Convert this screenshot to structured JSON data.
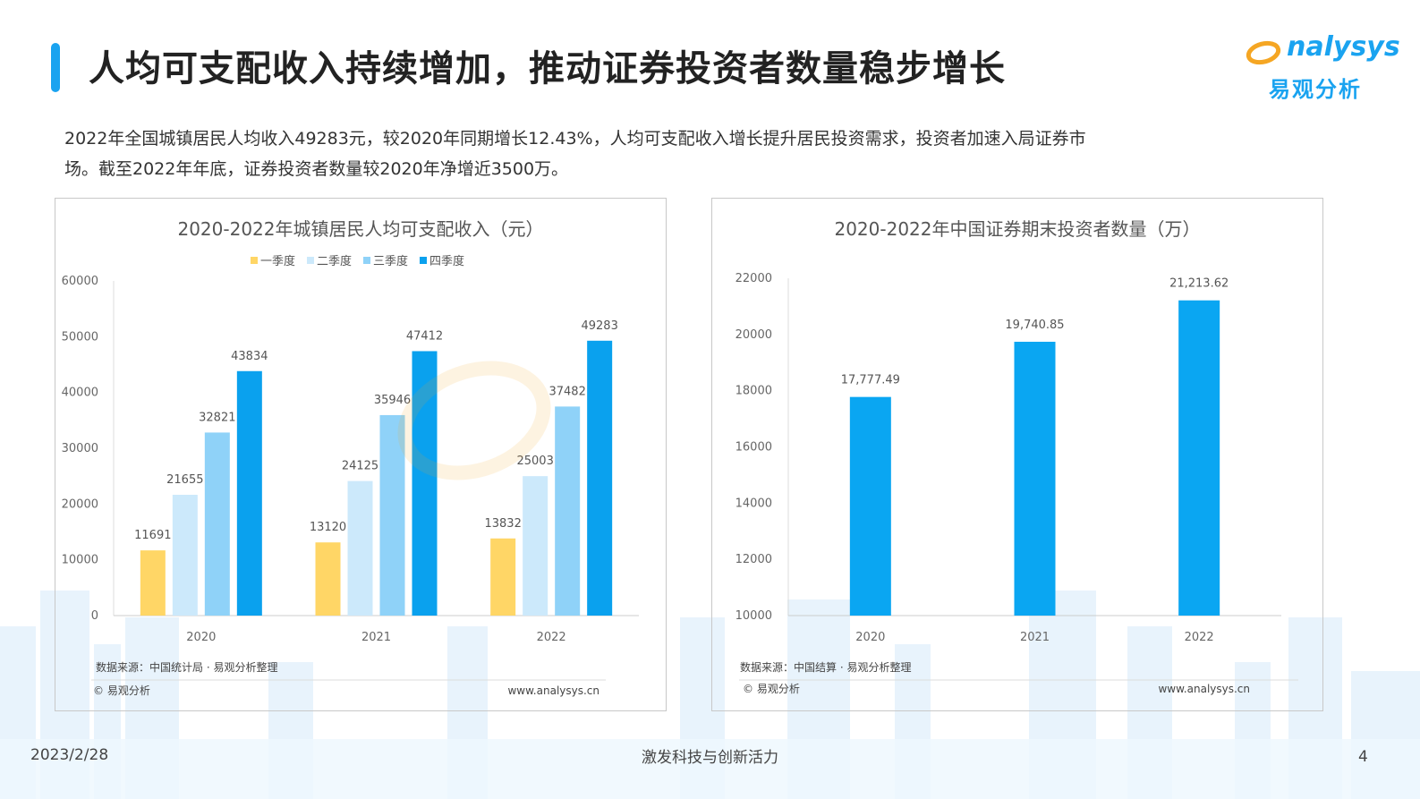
{
  "header": {
    "title": "人均可支配收入持续增加，推动证券投资者数量稳步增长",
    "logo_text": "nalysys",
    "logo_cn": "易观分析"
  },
  "intro": {
    "line1": "2022年全国城镇居民人均收入49283元，较2020年同期增长12.43%，人均可支配收入增长提升居民投资需求，投资者加速入局证券市",
    "line2": "场。截至2022年年底，证券投资者数量较2020年净增近3500万。"
  },
  "colors": {
    "accent": "#1aa3f0",
    "q1": "#ffd666",
    "q2": "#cce9fb",
    "q3": "#8fd2f8",
    "q4": "#0aa1ee",
    "bar": "#0aa6f2"
  },
  "chart_data": [
    {
      "type": "bar",
      "title": "2020-2022年城镇居民人均可支配收入（元）",
      "categories": [
        "2020",
        "2021",
        "2022"
      ],
      "series": [
        {
          "name": "一季度",
          "values": [
            11691,
            13120,
            13832
          ]
        },
        {
          "name": "二季度",
          "values": [
            21655,
            24125,
            25003
          ]
        },
        {
          "name": "三季度",
          "values": [
            32821,
            35946,
            37482
          ]
        },
        {
          "name": "四季度",
          "values": [
            43834,
            47412,
            49283
          ]
        }
      ],
      "data_labels": [
        [
          "11691",
          "13120",
          "13832"
        ],
        [
          "21655",
          "24125",
          "25003"
        ],
        [
          "32821",
          "35946",
          "37482"
        ],
        [
          "43834",
          "47412",
          "49283"
        ]
      ],
      "ylim": [
        0,
        60000
      ],
      "yticks": [
        "0",
        "10000",
        "20000",
        "30000",
        "40000",
        "50000",
        "60000"
      ],
      "legend_position": "top",
      "grid": false,
      "source": "数据来源：中国统计局 · 易观分析整理",
      "copyright": "© 易观分析",
      "website": "www.analysys.cn"
    },
    {
      "type": "bar",
      "title": "2020-2022年中国证券期末投资者数量（万）",
      "categories": [
        "2020",
        "2021",
        "2022"
      ],
      "values": [
        17777.49,
        19740.85,
        21213.62
      ],
      "data_labels": [
        "17,777.49",
        "19,740.85",
        "21,213.62"
      ],
      "ylim": [
        10000,
        22000
      ],
      "yticks": [
        "10000",
        "12000",
        "14000",
        "16000",
        "18000",
        "20000",
        "22000"
      ],
      "grid": false,
      "source": "数据来源：中国结算 · 易观分析整理",
      "copyright": "© 易观分析",
      "website": "www.analysys.cn"
    }
  ],
  "footer": {
    "date": "2023/2/28",
    "slogan": "激发科技与创新活力",
    "page": "4"
  }
}
